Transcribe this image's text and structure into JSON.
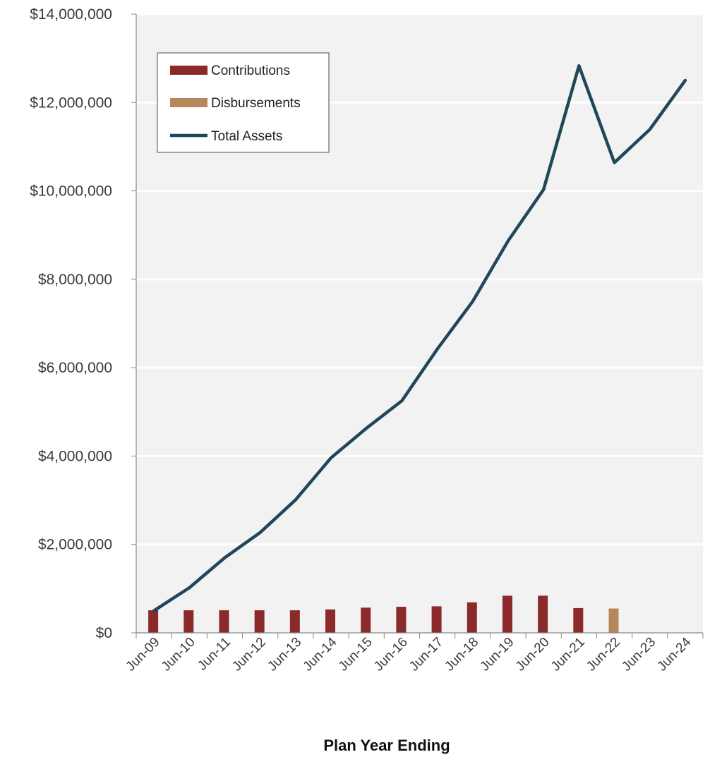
{
  "chart_data": {
    "type": "bar",
    "title": "",
    "xlabel": "Plan Year Ending",
    "ylabel": "",
    "categories": [
      "Jun-09",
      "Jun-10",
      "Jun-11",
      "Jun-12",
      "Jun-13",
      "Jun-14",
      "Jun-15",
      "Jun-16",
      "Jun-17",
      "Jun-18",
      "Jun-19",
      "Jun-20",
      "Jun-21",
      "Jun-22",
      "Jun-23",
      "Jun-24"
    ],
    "ylim": [
      0,
      14000000
    ],
    "yticks": [
      0,
      2000000,
      4000000,
      6000000,
      8000000,
      10000000,
      12000000,
      14000000
    ],
    "ytick_labels": [
      "$0",
      "$2,000,000",
      "$4,000,000",
      "$6,000,000",
      "$8,000,000",
      "$10,000,000",
      "$12,000,000",
      "$14,000,000"
    ],
    "grid": true,
    "legend_position": "top-left",
    "series": [
      {
        "name": "Contributions",
        "kind": "bar",
        "color": "#8b2a2a",
        "values": [
          510000,
          510000,
          510000,
          510000,
          510000,
          530000,
          570000,
          590000,
          600000,
          690000,
          840000,
          840000,
          560000,
          0,
          0,
          0
        ]
      },
      {
        "name": "Disbursements",
        "kind": "bar",
        "color": "#b5875a",
        "values": [
          0,
          0,
          0,
          0,
          0,
          0,
          0,
          0,
          0,
          0,
          0,
          0,
          0,
          550000,
          0,
          0
        ]
      },
      {
        "name": "Total Assets",
        "kind": "line",
        "color": "#1f4759",
        "values": [
          500000,
          1020000,
          1700000,
          2270000,
          3010000,
          3960000,
          4630000,
          5250000,
          6420000,
          7500000,
          8870000,
          10030000,
          12830000,
          10640000,
          11390000,
          12500000
        ]
      }
    ],
    "colors": {
      "plot_background": "#f2f2f2",
      "gridline": "#ffffff",
      "axis": "#888888"
    }
  }
}
